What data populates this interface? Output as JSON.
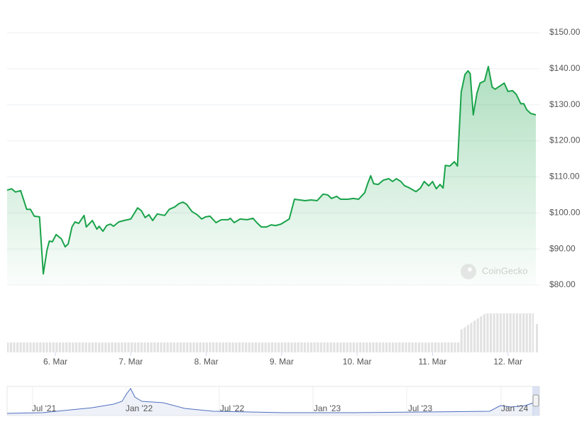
{
  "chart_data": {
    "type": "line",
    "x": [
      5.36,
      5.42,
      5.47,
      5.54,
      5.62,
      5.67,
      5.72,
      5.79,
      5.84,
      5.89,
      5.92,
      5.96,
      6.01,
      6.08,
      6.13,
      6.17,
      6.22,
      6.26,
      6.31,
      6.38,
      6.41,
      6.49,
      6.55,
      6.58,
      6.63,
      6.68,
      6.73,
      6.77,
      6.84,
      6.91,
      7.0,
      7.09,
      7.14,
      7.19,
      7.24,
      7.29,
      7.35,
      7.45,
      7.51,
      7.58,
      7.64,
      7.69,
      7.74,
      7.81,
      7.88,
      7.94,
      7.99,
      8.05,
      8.13,
      8.2,
      8.29,
      8.32,
      8.37,
      8.45,
      8.54,
      8.62,
      8.67,
      8.73,
      8.8,
      8.86,
      8.92,
      8.99,
      9.1,
      9.17,
      9.31,
      9.39,
      9.47,
      9.55,
      9.61,
      9.66,
      9.73,
      9.78,
      9.88,
      9.95,
      10.02,
      10.1,
      10.14,
      10.18,
      10.22,
      10.28,
      10.35,
      10.42,
      10.47,
      10.52,
      10.58,
      10.63,
      10.68,
      10.73,
      10.78,
      10.84,
      10.89,
      10.95,
      11.0,
      11.05,
      11.1,
      11.14,
      11.17,
      11.23,
      11.29,
      11.33,
      11.38,
      11.43,
      11.47,
      11.5,
      11.54,
      11.59,
      11.63,
      11.69,
      11.74,
      11.79,
      11.83,
      11.9,
      11.95,
      12.0,
      12.06,
      12.11,
      12.17,
      12.21,
      12.25,
      12.3,
      12.37
    ],
    "series": [
      {
        "color": "#1aa34a",
        "values": [
          106.3,
          106.7,
          105.8,
          106.2,
          101.0,
          101.0,
          99.1,
          98.9,
          83.1,
          89.8,
          92.2,
          92.0,
          94.0,
          92.8,
          90.6,
          91.4,
          96.1,
          97.5,
          97.1,
          99.3,
          96.1,
          97.9,
          95.5,
          96.3,
          94.9,
          96.5,
          96.9,
          96.3,
          97.5,
          97.9,
          98.3,
          101.4,
          100.6,
          98.7,
          99.5,
          97.9,
          99.7,
          99.3,
          101.0,
          101.6,
          102.6,
          103.0,
          102.4,
          100.4,
          99.5,
          98.3,
          98.9,
          99.1,
          97.3,
          98.1,
          98.1,
          98.5,
          97.3,
          98.3,
          98.1,
          98.5,
          97.3,
          96.1,
          96.1,
          96.7,
          96.5,
          96.9,
          98.3,
          103.8,
          103.4,
          103.6,
          103.4,
          105.2,
          105.0,
          104.0,
          104.6,
          103.8,
          103.8,
          104.0,
          103.8,
          105.6,
          108.1,
          110.3,
          108.1,
          107.9,
          109.1,
          109.5,
          108.7,
          109.5,
          108.7,
          107.5,
          107.1,
          106.5,
          105.9,
          106.9,
          108.7,
          107.5,
          108.7,
          106.7,
          107.9,
          106.9,
          113.2,
          113.0,
          114.2,
          113.0,
          133.5,
          138.4,
          139.4,
          138.6,
          127.2,
          133.3,
          136.0,
          136.6,
          140.6,
          134.9,
          134.3,
          135.3,
          136.0,
          133.7,
          133.9,
          132.9,
          130.3,
          130.3,
          128.6,
          127.6,
          127.2
        ]
      }
    ],
    "xlim": [
      5.36,
      12.37
    ],
    "xticks": [
      {
        "value": 6,
        "label": "6. Mar"
      },
      {
        "value": 7,
        "label": "7. Mar"
      },
      {
        "value": 8,
        "label": "8. Mar"
      },
      {
        "value": 9,
        "label": "9. Mar"
      },
      {
        "value": 10,
        "label": "10. Mar"
      },
      {
        "value": 11,
        "label": "11. Mar"
      },
      {
        "value": 12,
        "label": "12. Mar"
      }
    ],
    "ylim": [
      80,
      150
    ],
    "yticks": [
      {
        "value": 80,
        "label": "$80.00"
      },
      {
        "value": 90,
        "label": "$90.00"
      },
      {
        "value": 100,
        "label": "$100.00"
      },
      {
        "value": 110,
        "label": "$110.00"
      },
      {
        "value": 120,
        "label": "$120.00"
      },
      {
        "value": 130,
        "label": "$130.00"
      },
      {
        "value": 140,
        "label": "$140.00"
      },
      {
        "value": 150,
        "label": "$150.00"
      }
    ],
    "grid": true,
    "watermark": "CoinGecko",
    "navigator_labels": [
      "Jul '21",
      "Jan '22",
      "Jul '22",
      "Jan '23",
      "Jul '23",
      "Jan '24"
    ]
  }
}
